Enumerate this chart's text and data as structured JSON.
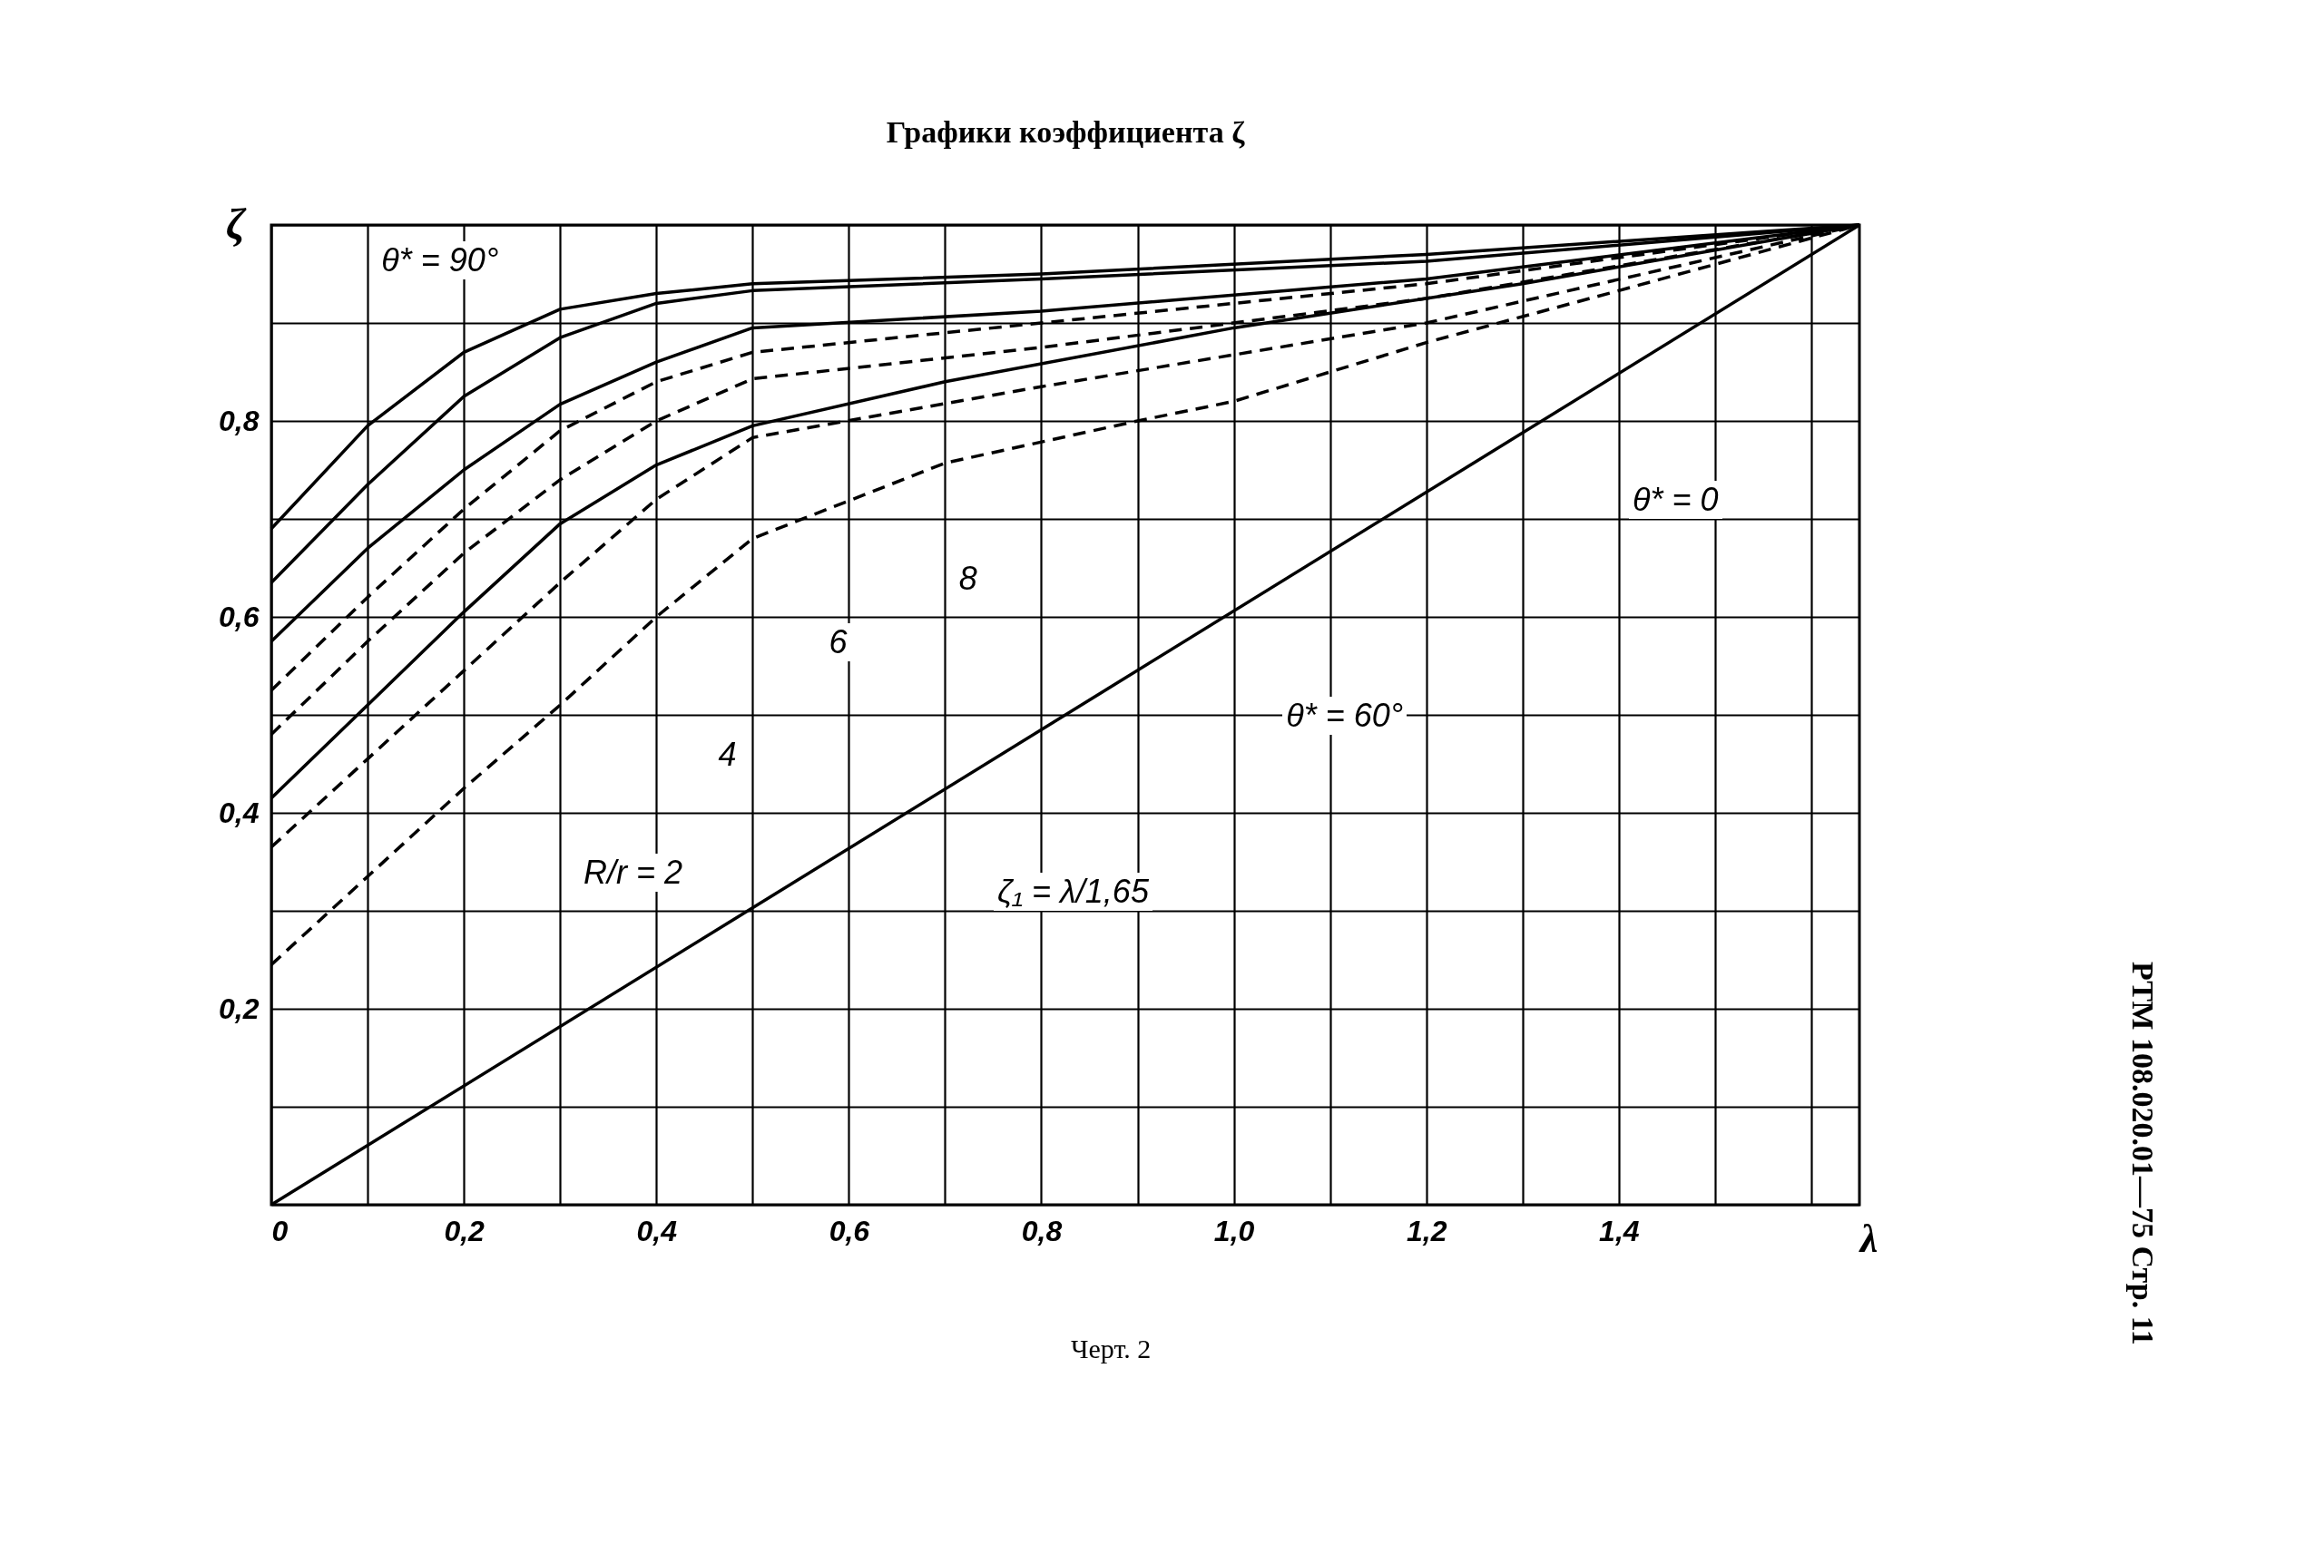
{
  "chart_data": {
    "type": "line",
    "title": "Графики коэффициента ζ",
    "xlabel": "λ",
    "ylabel": "ζ",
    "xlim": [
      0,
      1.65
    ],
    "ylim": [
      0,
      1
    ],
    "xticks": [
      0,
      {
        "value": 0.1,
        "label": null
      },
      {
        "value": 0.2,
        "label": "0,2"
      },
      {
        "value": 0.3,
        "label": null
      },
      {
        "value": 0.4,
        "label": "0,4"
      },
      {
        "value": 0.5,
        "label": null
      },
      {
        "value": 0.6,
        "label": "0,6"
      },
      {
        "value": 0.7,
        "label": null
      },
      {
        "value": 0.8,
        "label": "0,8"
      },
      {
        "value": 0.9,
        "label": null
      },
      {
        "value": 1.0,
        "label": "1,0"
      },
      {
        "value": 1.1,
        "label": null
      },
      {
        "value": 1.2,
        "label": "1,2"
      },
      {
        "value": 1.3,
        "label": null
      },
      {
        "value": 1.4,
        "label": "1,4"
      },
      {
        "value": 1.5,
        "label": null
      },
      {
        "value": 1.6,
        "label": null
      }
    ],
    "yticks": [
      {
        "value": 0,
        "label": null
      },
      {
        "value": 0.1,
        "label": null
      },
      {
        "value": 0.2,
        "label": "0,2"
      },
      {
        "value": 0.3,
        "label": null
      },
      {
        "value": 0.4,
        "label": "0,4"
      },
      {
        "value": 0.5,
        "label": null
      },
      {
        "value": 0.6,
        "label": "0,6"
      },
      {
        "value": 0.7,
        "label": null
      },
      {
        "value": 0.8,
        "label": "0,8"
      },
      {
        "value": 0.9,
        "label": null
      },
      {
        "value": 1.0,
        "label": null
      }
    ],
    "grid": true,
    "series": [
      {
        "color": "#000000",
        "line_style": "solid",
        "x": [
          0,
          0.1,
          0.2,
          0.3,
          0.4,
          0.5,
          0.8,
          1.2,
          1.65
        ],
        "values": [
          0.69,
          0.795,
          0.87,
          0.914,
          0.93,
          0.94,
          0.95,
          0.97,
          1.0
        ]
      },
      {
        "color": "#000000",
        "line_style": "solid",
        "x": [
          0,
          0.1,
          0.2,
          0.3,
          0.4,
          0.5,
          0.8,
          1.2,
          1.65
        ],
        "values": [
          0.635,
          0.735,
          0.825,
          0.885,
          0.92,
          0.933,
          0.945,
          0.963,
          1.0
        ]
      },
      {
        "color": "#000000",
        "line_style": "solid",
        "x": [
          0,
          0.1,
          0.2,
          0.3,
          0.4,
          0.5,
          0.8,
          1.2,
          1.65
        ],
        "values": [
          0.575,
          0.67,
          0.75,
          0.817,
          0.86,
          0.895,
          0.912,
          0.945,
          1.0
        ]
      },
      {
        "color": "#000000",
        "line_style": "solid",
        "x": [
          0,
          0.1,
          0.2,
          0.3,
          0.4,
          0.5,
          0.7,
          1.0,
          1.3,
          1.65
        ],
        "values": [
          0.415,
          0.51,
          0.605,
          0.695,
          0.755,
          0.795,
          0.84,
          0.895,
          0.94,
          1.0
        ]
      },
      {
        "color": "#000000",
        "line_style": "dashed",
        "x": [
          0,
          0.1,
          0.2,
          0.3,
          0.4,
          0.5,
          0.8,
          1.2,
          1.65
        ],
        "values": [
          0.525,
          0.62,
          0.71,
          0.79,
          0.84,
          0.87,
          0.9,
          0.94,
          1.0
        ]
      },
      {
        "color": "#000000",
        "line_style": "dashed",
        "x": [
          0,
          0.1,
          0.2,
          0.3,
          0.4,
          0.5,
          0.8,
          1.2,
          1.65
        ],
        "values": [
          0.48,
          0.575,
          0.665,
          0.74,
          0.8,
          0.843,
          0.875,
          0.925,
          1.0
        ]
      },
      {
        "color": "#000000",
        "line_style": "dashed",
        "x": [
          0,
          0.1,
          0.2,
          0.3,
          0.4,
          0.5,
          0.8,
          1.2,
          1.65
        ],
        "values": [
          0.365,
          0.455,
          0.545,
          0.635,
          0.72,
          0.783,
          0.835,
          0.9,
          1.0
        ]
      },
      {
        "color": "#000000",
        "line_style": "dashed",
        "x": [
          0,
          0.1,
          0.2,
          0.3,
          0.4,
          0.5,
          0.7,
          0.9,
          1.0,
          1.2,
          1.4,
          1.65
        ],
        "values": [
          0.245,
          0.335,
          0.425,
          0.51,
          0.6,
          0.68,
          0.757,
          0.8,
          0.82,
          0.88,
          0.933,
          1.0
        ]
      },
      {
        "color": "#000000",
        "line_style": "solid",
        "x": [
          0,
          1.65
        ],
        "values": [
          0,
          1.0
        ]
      }
    ],
    "annotations": [
      "θ* = 90°",
      "8",
      "6",
      "4",
      "R/r = 2",
      "θ* = 60°",
      "θ* = 0",
      "ζ₁ = λ/1,65",
      "Черт. 2",
      "РТМ 108.020.01—75 Стр. 11"
    ]
  }
}
